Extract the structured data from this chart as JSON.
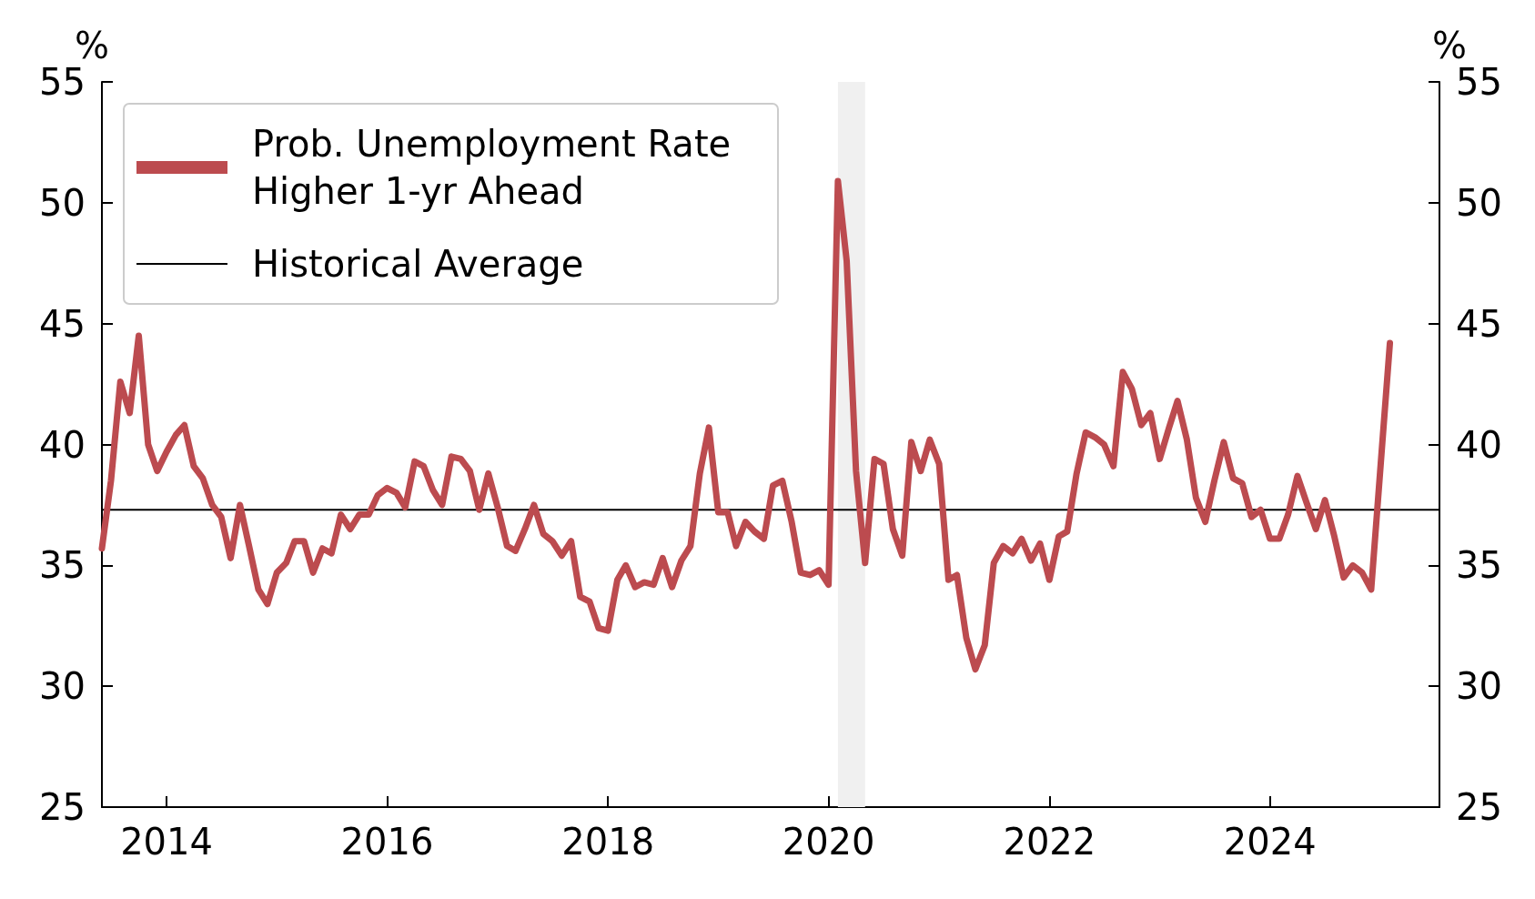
{
  "chart_data": {
    "type": "line",
    "ylabel": "%",
    "y2label": "%",
    "xlim": [
      "2013-06-01",
      "2025-07-15"
    ],
    "xticks": [
      {
        "value": "2014-01-01",
        "label": "2014"
      },
      {
        "value": "2016-01-01",
        "label": "2016"
      },
      {
        "value": "2018-01-01",
        "label": "2018"
      },
      {
        "value": "2020-01-01",
        "label": "2020"
      },
      {
        "value": "2022-01-01",
        "label": "2022"
      },
      {
        "value": "2024-01-01",
        "label": "2024"
      }
    ],
    "ylim": [
      25,
      55
    ],
    "yticks": [
      25,
      30,
      35,
      40,
      45,
      50,
      55
    ],
    "y2lim": [
      25,
      55
    ],
    "y2ticks": [
      25,
      30,
      35,
      40,
      45,
      50,
      55
    ],
    "grid": false,
    "legend": "top left",
    "line_style": "solid",
    "marker": "none",
    "series": [
      {
        "name": "Prob. Unemployment Rate Higher 1-yr Ahead",
        "color": "#bc4b4f",
        "x": [
          "2013-06",
          "2013-07",
          "2013-08",
          "2013-09",
          "2013-10",
          "2013-11",
          "2013-12",
          "2014-01",
          "2014-02",
          "2014-03",
          "2014-04",
          "2014-05",
          "2014-06",
          "2014-07",
          "2014-08",
          "2014-09",
          "2014-10",
          "2014-11",
          "2014-12",
          "2015-01",
          "2015-02",
          "2015-03",
          "2015-04",
          "2015-05",
          "2015-06",
          "2015-07",
          "2015-08",
          "2015-09",
          "2015-10",
          "2015-11",
          "2015-12",
          "2016-01",
          "2016-02",
          "2016-03",
          "2016-04",
          "2016-05",
          "2016-06",
          "2016-07",
          "2016-08",
          "2016-09",
          "2016-10",
          "2016-11",
          "2016-12",
          "2017-01",
          "2017-02",
          "2017-03",
          "2017-04",
          "2017-05",
          "2017-06",
          "2017-07",
          "2017-08",
          "2017-09",
          "2017-10",
          "2017-11",
          "2017-12",
          "2018-01",
          "2018-02",
          "2018-03",
          "2018-04",
          "2018-05",
          "2018-06",
          "2018-07",
          "2018-08",
          "2018-09",
          "2018-10",
          "2018-11",
          "2018-12",
          "2019-01",
          "2019-02",
          "2019-03",
          "2019-04",
          "2019-05",
          "2019-06",
          "2019-07",
          "2019-08",
          "2019-09",
          "2019-10",
          "2019-11",
          "2019-12",
          "2020-01",
          "2020-02",
          "2020-03",
          "2020-04",
          "2020-05",
          "2020-06",
          "2020-07",
          "2020-08",
          "2020-09",
          "2020-10",
          "2020-11",
          "2020-12",
          "2021-01",
          "2021-02",
          "2021-03",
          "2021-04",
          "2021-05",
          "2021-06",
          "2021-07",
          "2021-08",
          "2021-09",
          "2021-10",
          "2021-11",
          "2021-12",
          "2022-01",
          "2022-02",
          "2022-03",
          "2022-04",
          "2022-05",
          "2022-06",
          "2022-07",
          "2022-08",
          "2022-09",
          "2022-10",
          "2022-11",
          "2022-12",
          "2023-01",
          "2023-02",
          "2023-03",
          "2023-04",
          "2023-05",
          "2023-06",
          "2023-07",
          "2023-08",
          "2023-09",
          "2023-10",
          "2023-11",
          "2023-12",
          "2024-01",
          "2024-02",
          "2024-03",
          "2024-04",
          "2024-05",
          "2024-06",
          "2024-07",
          "2024-08",
          "2024-09",
          "2024-10",
          "2024-11",
          "2024-12",
          "2025-02"
        ],
        "values": [
          35.7,
          38.5,
          42.6,
          41.3,
          44.5,
          40.0,
          38.9,
          39.7,
          40.4,
          40.8,
          39.1,
          38.6,
          37.5,
          37.0,
          35.3,
          37.5,
          35.8,
          34.0,
          33.4,
          34.7,
          35.1,
          36.0,
          36.0,
          34.7,
          35.7,
          35.5,
          37.1,
          36.5,
          37.1,
          37.1,
          37.9,
          38.2,
          38.0,
          37.4,
          39.3,
          39.1,
          38.1,
          37.5,
          39.5,
          39.4,
          38.9,
          37.3,
          38.8,
          37.4,
          35.8,
          35.6,
          36.5,
          37.5,
          36.3,
          36.0,
          35.4,
          36.0,
          33.7,
          33.5,
          32.4,
          32.3,
          34.4,
          35.0,
          34.1,
          34.3,
          34.2,
          35.3,
          34.1,
          35.2,
          35.8,
          38.8,
          40.7,
          37.2,
          37.2,
          35.8,
          36.8,
          36.4,
          36.1,
          38.3,
          38.5,
          36.8,
          34.7,
          34.6,
          34.8,
          34.2,
          50.9,
          47.6,
          38.9,
          35.1,
          39.4,
          39.2,
          36.5,
          35.4,
          40.1,
          38.9,
          40.2,
          39.2,
          34.4,
          34.6,
          32.0,
          30.7,
          31.7,
          35.1,
          35.8,
          35.5,
          36.1,
          35.2,
          35.9,
          34.4,
          36.2,
          36.4,
          38.8,
          40.5,
          40.3,
          40.0,
          39.1,
          43.0,
          42.3,
          40.8,
          41.3,
          39.4,
          40.7,
          41.8,
          40.2,
          37.8,
          36.8,
          38.5,
          40.1,
          38.6,
          38.4,
          37.0,
          37.3,
          36.1,
          36.1,
          37.1,
          38.7,
          37.6,
          36.5,
          37.7,
          36.2,
          34.5,
          35.0,
          34.7,
          34.0,
          44.2
        ]
      }
    ],
    "ref_lines": [
      {
        "axis": "y",
        "value": 37.3,
        "label": "Historical Average",
        "color": "#000000"
      }
    ],
    "bands": [
      {
        "axis": "x",
        "from": "2020-02",
        "to": "2020-05",
        "color": "#f0f0f0"
      }
    ]
  }
}
